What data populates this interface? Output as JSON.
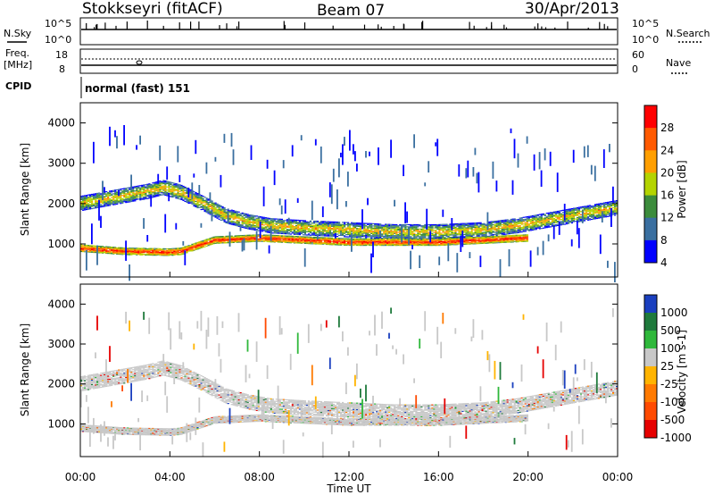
{
  "header": {
    "station": "Stokkseyri (fitACF)",
    "beam": "Beam 07",
    "date": "30/Apr/2013"
  },
  "top_panels": {
    "nsky_label": "N.Sky",
    "nsky_ticks": [
      "10^5",
      "10^0"
    ],
    "nsearch_label": "N.Search",
    "nsearch_ticks": [
      "10^5",
      "10^0"
    ],
    "freq_label": "Freq.",
    "freq_unit": "[MHz]",
    "freq_ticks": [
      "18",
      "8"
    ],
    "nave_label": "Nave",
    "nave_ticks": [
      "60",
      "0"
    ],
    "cpid_label": "CPID",
    "cpid_value": "normal (fast) 151"
  },
  "chart_data": [
    {
      "type": "heatmap",
      "panel": "power",
      "ylabel": "Slant Range [km]",
      "yticks": [
        "4000",
        "3000",
        "2000",
        "1000"
      ],
      "ylim": [
        180,
        4500
      ],
      "xlim": [
        0,
        24
      ],
      "colorbar_label": "Power [dB]",
      "colorbar_ticks": [
        "28",
        "24",
        "20",
        "16",
        "12",
        "8",
        "4"
      ],
      "colors": [
        "#ff0000",
        "#ff5a00",
        "#ff9f00",
        "#b4d400",
        "#3c8c3c",
        "#3a6fa0",
        "#0000ff"
      ],
      "bands": [
        {
          "x": [
            0,
            0.5,
            1,
            2,
            3,
            3.7,
            4.5,
            5.5,
            6.5,
            7.5,
            8.5,
            10,
            12,
            14,
            16,
            18,
            19.5,
            21,
            22.5,
            23.5,
            24
          ],
          "y": [
            2000,
            2050,
            2100,
            2200,
            2300,
            2400,
            2280,
            2000,
            1700,
            1550,
            1450,
            1400,
            1350,
            1300,
            1300,
            1350,
            1450,
            1600,
            1750,
            1850,
            1900
          ]
        },
        {
          "x": [
            0,
            2,
            4,
            4.5,
            6,
            8,
            10,
            12,
            14,
            16,
            18,
            20
          ],
          "y": [
            900,
            820,
            800,
            820,
            1100,
            1150,
            1100,
            1050,
            1050,
            1050,
            1100,
            1150
          ]
        }
      ]
    },
    {
      "type": "heatmap",
      "panel": "velocity",
      "ylabel": "Slant Range [km]",
      "yticks": [
        "4000",
        "3000",
        "2000",
        "1000"
      ],
      "ylim": [
        180,
        4500
      ],
      "xlim": [
        0,
        24
      ],
      "xticks": [
        "00:00",
        "04:00",
        "08:00",
        "12:00",
        "16:00",
        "20:00",
        "00:00"
      ],
      "xlabel": "Time UT",
      "colorbar_label": "Velocity [m s-1]",
      "colorbar_ticks": [
        "1000",
        "500",
        "100",
        "25",
        "-25",
        "-100",
        "-500",
        "-1000"
      ],
      "colors": [
        "#1a3fbf",
        "#1f7a3c",
        "#2fb83b",
        "#c8c8c8",
        "#ffb400",
        "#ff7a00",
        "#ff4a00",
        "#e60000"
      ],
      "bands": [
        {
          "x": [
            0,
            0.5,
            1,
            2,
            3,
            3.7,
            4.5,
            5.5,
            6.5,
            7.5,
            8.5,
            10,
            12,
            14,
            16,
            18,
            19.5,
            21,
            22.5,
            23.5,
            24
          ],
          "y": [
            2000,
            2050,
            2100,
            2200,
            2300,
            2400,
            2280,
            2000,
            1700,
            1550,
            1450,
            1400,
            1350,
            1300,
            1300,
            1350,
            1450,
            1600,
            1750,
            1850,
            1900
          ]
        },
        {
          "x": [
            0,
            2,
            4,
            4.5,
            6,
            8,
            10,
            12,
            14,
            16,
            18,
            20
          ],
          "y": [
            900,
            820,
            800,
            820,
            1100,
            1150,
            1100,
            1050,
            1050,
            1050,
            1100,
            1150
          ]
        }
      ]
    }
  ]
}
